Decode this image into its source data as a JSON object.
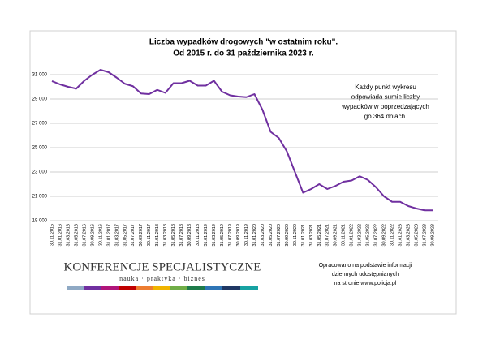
{
  "chart_data": {
    "type": "line",
    "title": [
      "Liczba wypadków drogowych \"w ostatnim roku\".",
      "Od 2015 r. do 31 października 2023 r."
    ],
    "categories": [
      "30.11.2015",
      "31.01.2016",
      "31.03.2016",
      "31.05.2016",
      "31.07.2016",
      "30.09.2016",
      "30.11.2016",
      "31.01.2017",
      "31.03.2017",
      "31.05.2017",
      "31.07.2017",
      "30.09.2017",
      "30.11.2017",
      "31.01.2018",
      "31.03.2018",
      "31.05.2018",
      "31.07.2018",
      "30.09.2018",
      "30.11.2018",
      "31.01.2019",
      "31.03.2019",
      "31.05.2019",
      "31.07.2019",
      "30.09.2019",
      "30.11.2019",
      "31.01.2020",
      "31.03.2020",
      "31.05.2020",
      "31.07.2020",
      "30.09.2020",
      "30.11.2020",
      "31.01.2021",
      "31.03.2021",
      "31.05.2021",
      "31.07.2021",
      "30.09.2021",
      "30.11.2021",
      "31.01.2022",
      "31.03.2022",
      "31.05.2022",
      "31.07.2022",
      "30.09.2022",
      "30.11.2022",
      "31.01.2023",
      "31.03.2023",
      "31.05.2023",
      "31.07.2023",
      "30.09.2023"
    ],
    "values": [
      30470,
      30200,
      30000,
      29850,
      30500,
      31000,
      31400,
      31200,
      30750,
      30250,
      30050,
      29450,
      29400,
      29750,
      29500,
      30300,
      30300,
      30500,
      30100,
      30100,
      30500,
      29600,
      29300,
      29200,
      29150,
      29400,
      28100,
      26300,
      25800,
      24700,
      23000,
      21300,
      21600,
      22000,
      21600,
      21850,
      22200,
      22300,
      22650,
      22350,
      21750,
      21000,
      20550,
      20550,
      20200,
      20000,
      19850,
      19850
    ],
    "color": "#7030a0",
    "ylim": [
      19000,
      32000
    ],
    "yticks": [
      {
        "value": 19000,
        "label": "19 000"
      },
      {
        "value": 21000,
        "label": "21 000"
      },
      {
        "value": 23000,
        "label": "23 000"
      },
      {
        "value": 25000,
        "label": "25 000"
      },
      {
        "value": 27000,
        "label": "27 000"
      },
      {
        "value": 29000,
        "label": "29 000"
      },
      {
        "value": 31000,
        "label": "31 000"
      }
    ],
    "grid": true,
    "annotation": [
      "Każdy punkt wykresu",
      "odpowiada sumie liczby",
      "wypadków w poprzedzających",
      "go 364 dniach."
    ]
  },
  "footer": {
    "logo_title": "KONFERENCJE SPECJALISTYCZNE",
    "logo_subtitle": "nauka · praktyka · biznes",
    "source": [
      "Opracowano na podstawie informacji",
      "dziennych udostępnianych",
      "na stronie www.policja.pl"
    ]
  }
}
